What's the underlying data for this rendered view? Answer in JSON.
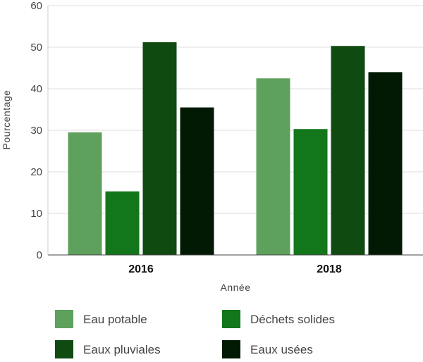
{
  "chart_data": {
    "type": "bar",
    "title": "",
    "xlabel": "Année",
    "ylabel": "Pourcentage",
    "ylim": [
      0,
      60
    ],
    "yticks": [
      0,
      10,
      20,
      30,
      40,
      50,
      60
    ],
    "grid": true,
    "legend_position": "bottom",
    "categories": [
      "2016",
      "2018"
    ],
    "series": [
      {
        "name": "Eau potable",
        "color": "#5ea15c",
        "values": [
          29.5,
          42.5
        ]
      },
      {
        "name": "Déchets solides",
        "color": "#12761a",
        "values": [
          15.3,
          30.3
        ]
      },
      {
        "name": "Eaux pluviales",
        "color": "#0f4a11",
        "values": [
          51.2,
          50.3
        ]
      },
      {
        "name": "Eaux usées",
        "color": "#021a04",
        "values": [
          35.5,
          44.0
        ]
      }
    ]
  }
}
